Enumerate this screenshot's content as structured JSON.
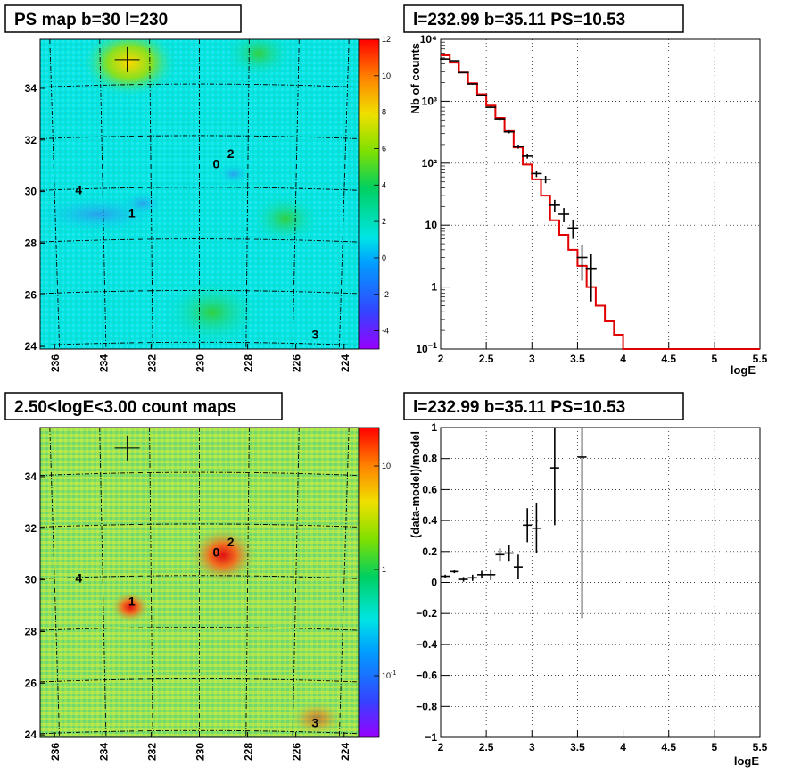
{
  "colors": {
    "map_background": "#00e5e5",
    "countmap_background": "#8fe05a",
    "data": "#000000",
    "model": "#e00000",
    "grid": "#000000"
  },
  "chart_data": [
    {
      "type": "heatmap",
      "title": "PS map b=30 l=230",
      "xlabel": "",
      "ylabel": "",
      "x_ticks": [
        "236",
        "234",
        "232",
        "230",
        "228",
        "226",
        "224"
      ],
      "y_ticks": [
        "24",
        "26",
        "28",
        "30",
        "32",
        "34"
      ],
      "xlim": [
        236.6,
        223.4
      ],
      "ylim": [
        23.9,
        35.9
      ],
      "colorbar": {
        "min": -5,
        "max": 12,
        "ticks": [
          "12",
          "10",
          "8",
          "6",
          "4",
          "2",
          "0",
          "-2",
          "-4"
        ],
        "ticks_numeric": [
          12,
          10,
          8,
          6,
          4,
          2,
          0,
          -2,
          -4
        ]
      },
      "markers": [
        {
          "label": "0",
          "l": 229.3,
          "b": 30.9
        },
        {
          "label": "2",
          "l": 228.7,
          "b": 31.3
        },
        {
          "label": "4",
          "l": 235.0,
          "b": 29.9
        },
        {
          "label": "1",
          "l": 232.8,
          "b": 29.0
        },
        {
          "label": "3",
          "l": 225.2,
          "b": 24.3
        }
      ],
      "crosshair": {
        "l": 232.99,
        "b": 35.11
      }
    },
    {
      "type": "line",
      "title": "l=232.99 b=35.11 PS=10.53",
      "xlabel": "logE",
      "ylabel": "Nb of counts",
      "log_y": true,
      "xlim": [
        2,
        5.5
      ],
      "ylim": [
        0.1,
        10000
      ],
      "x_ticks": [
        "2",
        "2.5",
        "3",
        "3.5",
        "4",
        "4.5",
        "5",
        "5.5"
      ],
      "y_ticks": [
        "10",
        "1",
        "10",
        "10²",
        "10³",
        "10⁴"
      ],
      "grid": true,
      "data_points": [
        {
          "x": 2.05,
          "y": 4800
        },
        {
          "x": 2.15,
          "y": 4500
        },
        {
          "x": 2.25,
          "y": 2900
        },
        {
          "x": 2.35,
          "y": 1900
        },
        {
          "x": 2.45,
          "y": 1250
        },
        {
          "x": 2.55,
          "y": 800
        },
        {
          "x": 2.65,
          "y": 520
        },
        {
          "x": 2.75,
          "y": 320
        },
        {
          "x": 2.85,
          "y": 185
        },
        {
          "x": 2.95,
          "y": 130
        },
        {
          "x": 3.05,
          "y": 68
        },
        {
          "x": 3.15,
          "y": 55
        },
        {
          "x": 3.25,
          "y": 21
        },
        {
          "x": 3.35,
          "y": 15
        },
        {
          "x": 3.45,
          "y": 9
        },
        {
          "x": 3.55,
          "y": 3
        },
        {
          "x": 3.65,
          "y": 2
        }
      ],
      "model_steps": [
        {
          "x0": 2.0,
          "x1": 2.1,
          "y": 5500
        },
        {
          "x0": 2.1,
          "x1": 2.2,
          "y": 4200
        },
        {
          "x0": 2.2,
          "x1": 2.3,
          "y": 2900
        },
        {
          "x0": 2.3,
          "x1": 2.4,
          "y": 1950
        },
        {
          "x0": 2.4,
          "x1": 2.5,
          "y": 1300
        },
        {
          "x0": 2.5,
          "x1": 2.6,
          "y": 850
        },
        {
          "x0": 2.6,
          "x1": 2.7,
          "y": 540
        },
        {
          "x0": 2.7,
          "x1": 2.8,
          "y": 330
        },
        {
          "x0": 2.8,
          "x1": 2.9,
          "y": 180
        },
        {
          "x0": 2.9,
          "x1": 3.0,
          "y": 95
        },
        {
          "x0": 3.0,
          "x1": 3.1,
          "y": 55
        },
        {
          "x0": 3.1,
          "x1": 3.2,
          "y": 30
        },
        {
          "x0": 3.2,
          "x1": 3.3,
          "y": 12
        },
        {
          "x0": 3.3,
          "x1": 3.4,
          "y": 7
        },
        {
          "x0": 3.4,
          "x1": 3.5,
          "y": 4
        },
        {
          "x0": 3.5,
          "x1": 3.6,
          "y": 2.2
        },
        {
          "x0": 3.6,
          "x1": 3.7,
          "y": 1.0
        },
        {
          "x0": 3.7,
          "x1": 3.8,
          "y": 0.5
        },
        {
          "x0": 3.8,
          "x1": 3.9,
          "y": 0.28
        },
        {
          "x0": 3.9,
          "x1": 4.0,
          "y": 0.17
        },
        {
          "x0": 4.0,
          "x1": 5.5,
          "y": 0.1
        }
      ]
    },
    {
      "type": "heatmap",
      "title": "2.50<logE<3.00 count maps",
      "xlabel": "",
      "ylabel": "",
      "x_ticks": [
        "236",
        "234",
        "232",
        "230",
        "228",
        "226",
        "224"
      ],
      "y_ticks": [
        "24",
        "26",
        "28",
        "30",
        "32",
        "34"
      ],
      "xlim": [
        236.6,
        223.4
      ],
      "ylim": [
        23.9,
        35.9
      ],
      "log_colorbar": true,
      "colorbar": {
        "ticks": [
          "10",
          "1",
          "10"
        ],
        "tick_exponents": [
          0,
          0,
          -1
        ]
      },
      "markers": [
        {
          "label": "0",
          "l": 229.3,
          "b": 30.9
        },
        {
          "label": "2",
          "l": 228.7,
          "b": 31.3
        },
        {
          "label": "4",
          "l": 235.0,
          "b": 29.9
        },
        {
          "label": "1",
          "l": 232.8,
          "b": 29.0
        },
        {
          "label": "3",
          "l": 225.2,
          "b": 24.3
        }
      ],
      "crosshair": {
        "l": 232.99,
        "b": 35.11
      }
    },
    {
      "type": "scatter",
      "title": "l=232.99 b=35.11 PS=10.53",
      "xlabel": "logE",
      "ylabel": "(data-model)/model",
      "xlim": [
        2,
        5.5
      ],
      "ylim": [
        -1,
        1
      ],
      "x_ticks": [
        "2",
        "2.5",
        "3",
        "3.5",
        "4",
        "4.5",
        "5",
        "5.5"
      ],
      "y_ticks": [
        "1",
        "0.8",
        "0.6",
        "0.4",
        "0.2",
        "0",
        "−0.2",
        "−0.4",
        "−0.6",
        "−0.8",
        "−1"
      ],
      "grid": true,
      "points": [
        {
          "x": 2.05,
          "y": 0.04,
          "err": 0.01
        },
        {
          "x": 2.15,
          "y": 0.07,
          "err": 0.01
        },
        {
          "x": 2.25,
          "y": 0.02,
          "err": 0.015
        },
        {
          "x": 2.35,
          "y": 0.03,
          "err": 0.02
        },
        {
          "x": 2.45,
          "y": 0.05,
          "err": 0.025
        },
        {
          "x": 2.55,
          "y": 0.05,
          "err": 0.035
        },
        {
          "x": 2.65,
          "y": 0.18,
          "err": 0.04
        },
        {
          "x": 2.75,
          "y": 0.19,
          "err": 0.05
        },
        {
          "x": 2.85,
          "y": 0.1,
          "err": 0.08
        },
        {
          "x": 2.95,
          "y": 0.37,
          "err": 0.11
        },
        {
          "x": 3.05,
          "y": 0.35,
          "err": 0.16
        },
        {
          "x": 3.25,
          "y": 0.74,
          "err": 0.37
        },
        {
          "x": 3.55,
          "y": 0.81,
          "err": 1.04
        }
      ]
    }
  ]
}
